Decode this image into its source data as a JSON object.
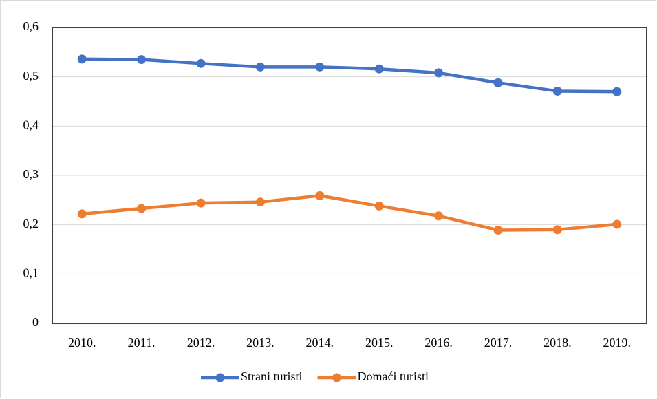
{
  "chart_data": {
    "type": "line",
    "categories": [
      "2010.",
      "2011.",
      "2012.",
      "2013.",
      "2014.",
      "2015.",
      "2016.",
      "2017.",
      "2018.",
      "2019."
    ],
    "series": [
      {
        "name": "Strani turisti",
        "color": "#4472c4",
        "values": [
          0.536,
          0.535,
          0.527,
          0.52,
          0.52,
          0.516,
          0.508,
          0.488,
          0.471,
          0.47
        ]
      },
      {
        "name": "Domaći turisti",
        "color": "#ed7d31",
        "values": [
          0.222,
          0.233,
          0.244,
          0.246,
          0.259,
          0.238,
          0.218,
          0.189,
          0.19,
          0.201
        ]
      }
    ],
    "ylim": [
      0,
      0.6
    ],
    "yticks": [
      0,
      {
        "value": 0.1,
        "label": "0,1"
      },
      {
        "value": 0.2,
        "label": "0,2"
      },
      {
        "value": 0.3,
        "label": "0,3"
      },
      {
        "value": 0.4,
        "label": "0,4"
      },
      {
        "value": 0.5,
        "label": "0,5"
      },
      {
        "value": 0.6,
        "label": "0,6"
      }
    ],
    "grid": true,
    "legend": "bottom"
  }
}
